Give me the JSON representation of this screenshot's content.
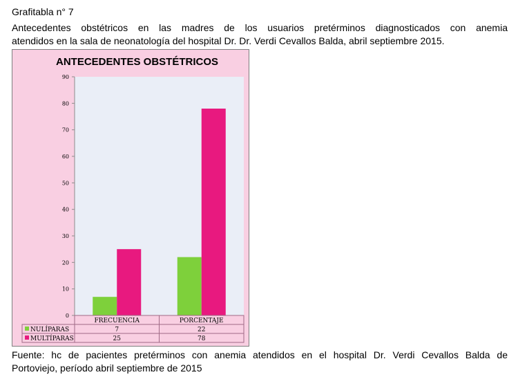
{
  "header": {
    "label": "Grafitabla  n° 7",
    "description_line1": "Antecedentes obstétricos en las madres  de los usuarios pretérminos diagnosticados con anemia",
    "description_line2": "atendidos en la sala de neonatología del hospital Dr. Dr. Verdi  Cevallos Balda, abril  septiembre  2015."
  },
  "chart_data": {
    "type": "bar",
    "title": "ANTECEDENTES OBSTÉTRICOS",
    "categories": [
      "FRECUENCIA",
      "PORCENTAJE"
    ],
    "series": [
      {
        "name": "NULÍPARAS",
        "values": [
          7,
          22
        ],
        "color": "#7ed03b"
      },
      {
        "name": "MULTÍPARAS",
        "values": [
          25,
          78
        ],
        "color": "#e8197f"
      }
    ],
    "ylim": [
      0,
      90
    ],
    "yticks": [
      0,
      10,
      20,
      30,
      40,
      50,
      60,
      70,
      80,
      90
    ],
    "grid": false,
    "plot_background": "#eaeef7",
    "legend": "data-table-below",
    "xlabel": "",
    "ylabel": ""
  },
  "footer": {
    "source_line1": "Fuente: hc de pacientes pretérminos con anemia  atendidos en el hospital Dr. Verdi Cevallos Balda de",
    "source_line2": "Portoviejo, período abril  septiembre de 2015"
  }
}
